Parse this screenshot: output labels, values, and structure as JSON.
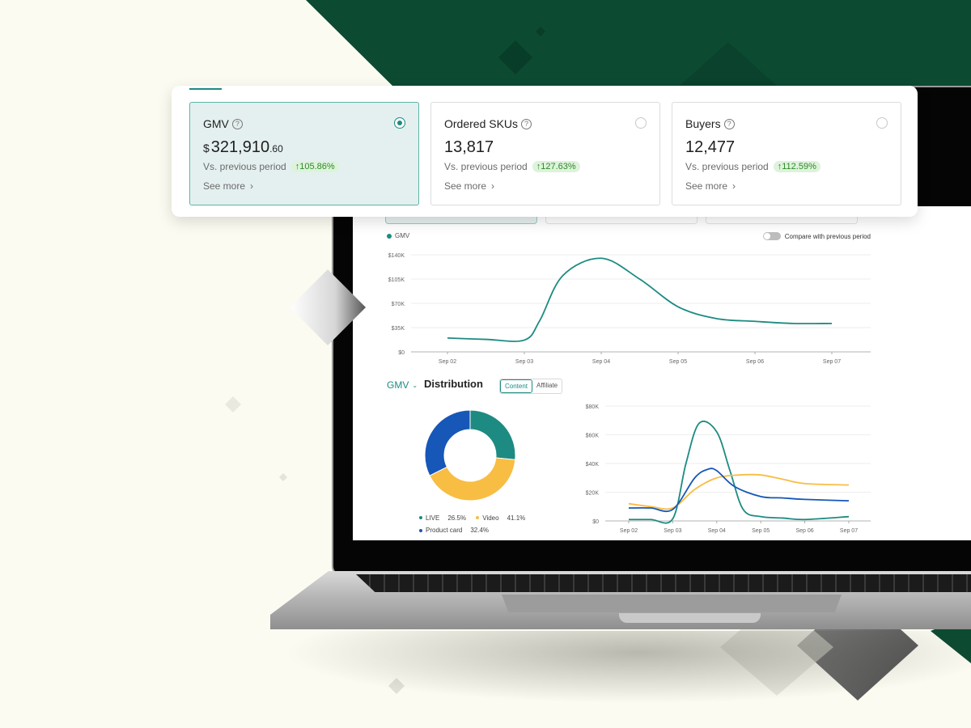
{
  "metrics": [
    {
      "title": "GMV",
      "currency": "$",
      "value_main": "321,910",
      "value_cents": ".60",
      "vs_label": "Vs. previous period",
      "change": "↑105.86%",
      "see_more": "See more",
      "selected": true
    },
    {
      "title": "Ordered SKUs",
      "currency": "",
      "value_main": "13,817",
      "value_cents": "",
      "vs_label": "Vs. previous period",
      "change": "↑127.63%",
      "see_more": "See more",
      "selected": false
    },
    {
      "title": "Buyers",
      "currency": "",
      "value_main": "12,477",
      "value_cents": "",
      "vs_label": "Vs. previous period",
      "change": "↑112.59%",
      "see_more": "See more",
      "selected": false
    }
  ],
  "icons": {
    "help": "question-circle-icon",
    "chevron": "chevron-right-icon",
    "dropdown": "chevron-down-icon"
  },
  "colors": {
    "teal": "#1d8b82",
    "blue": "#1657b8",
    "yellow": "#f8bd43",
    "positive": "#2f8a2b"
  },
  "gmv_chart": {
    "legend": "GMV",
    "compare_label": "Compare with previous period",
    "compare_on": false
  },
  "distribution": {
    "metric_select": "GMV",
    "title": "Distribution",
    "tabs": [
      "Content",
      "Affiliate"
    ],
    "active_tab": "Content",
    "legend": [
      {
        "label": "LIVE",
        "value": "26.5%"
      },
      {
        "label": "Video",
        "value": "41.1%"
      },
      {
        "label": "Product card",
        "value": "32.4%"
      }
    ]
  },
  "chart_data": [
    {
      "type": "line",
      "x": [
        "Sep 02",
        "Sep 03",
        "Sep 04",
        "Sep 05",
        "Sep 06",
        "Sep 07"
      ],
      "yticks": [
        "$0",
        "$35K",
        "$70K",
        "$105K",
        "$140K"
      ],
      "ylim": [
        0,
        140000
      ],
      "series": [
        {
          "name": "GMV",
          "color": "#1d8b82",
          "points": [
            [
              0,
              20000
            ],
            [
              0.5,
              18000
            ],
            [
              1,
              17000
            ],
            [
              1.2,
              45000
            ],
            [
              1.5,
              110000
            ],
            [
              2,
              135000
            ],
            [
              2.5,
              105000
            ],
            [
              3,
              65000
            ],
            [
              3.5,
              48000
            ],
            [
              4,
              44000
            ],
            [
              4.5,
              41000
            ],
            [
              5,
              41000
            ]
          ]
        }
      ]
    },
    {
      "type": "pie",
      "labels": [
        "LIVE",
        "Video",
        "Product card"
      ],
      "values": [
        26.5,
        41.1,
        32.4
      ],
      "colors": [
        "#1d8b82",
        "#f8bd43",
        "#1657b8"
      ]
    },
    {
      "type": "line",
      "x": [
        "Sep 02",
        "Sep 03",
        "Sep 04",
        "Sep 05",
        "Sep 06",
        "Sep 07"
      ],
      "yticks": [
        "$0",
        "$20K",
        "$40K",
        "$60K",
        "$80K"
      ],
      "ylim": [
        0,
        80000
      ],
      "series": [
        {
          "color": "#1d8b82",
          "points": [
            [
              0,
              1000
            ],
            [
              0.5,
              1000
            ],
            [
              1,
              1500
            ],
            [
              1.3,
              40000
            ],
            [
              1.6,
              68000
            ],
            [
              2,
              62000
            ],
            [
              2.3,
              35000
            ],
            [
              2.6,
              8000
            ],
            [
              3,
              3000
            ],
            [
              3.5,
              2000
            ],
            [
              4,
              1000
            ],
            [
              5,
              3000
            ]
          ]
        },
        {
          "color": "#f8bd43",
          "points": [
            [
              0,
              12000
            ],
            [
              0.5,
              10000
            ],
            [
              1,
              9000
            ],
            [
              1.5,
              22000
            ],
            [
              2,
              30000
            ],
            [
              2.5,
              32000
            ],
            [
              3,
              32000
            ],
            [
              3.5,
              29000
            ],
            [
              4,
              26000
            ],
            [
              5,
              25000
            ]
          ]
        },
        {
          "color": "#1657b8",
          "points": [
            [
              0,
              9000
            ],
            [
              0.5,
              9000
            ],
            [
              1,
              8000
            ],
            [
              1.5,
              30000
            ],
            [
              1.8,
              36000
            ],
            [
              2,
              35000
            ],
            [
              2.4,
              24000
            ],
            [
              3,
              17000
            ],
            [
              3.5,
              16000
            ],
            [
              4,
              15000
            ],
            [
              5,
              14000
            ]
          ]
        }
      ]
    }
  ]
}
